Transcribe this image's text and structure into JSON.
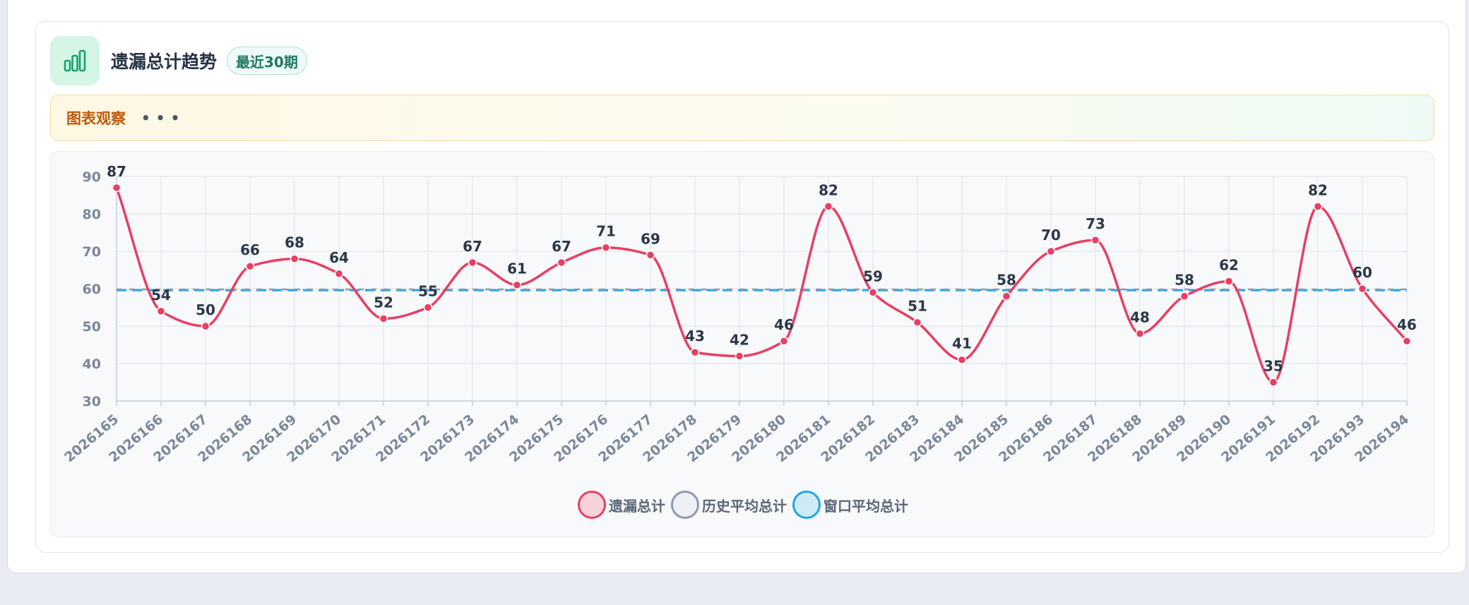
{
  "header": {
    "title": "遗漏总计趋势",
    "badge": "最近30期",
    "icon": "bar-chart-icon"
  },
  "insight": {
    "label": "图表观察",
    "dots": "•••"
  },
  "colors": {
    "accent_green": "#13a36f",
    "series_main": "#e83f63",
    "series_hist": "#8c9ab0",
    "series_window": "#22a6e0",
    "badge_text": "#1f7a63",
    "insight_label": "#c0580c"
  },
  "legend": [
    {
      "label": "遗漏总计",
      "border": "#e83f63",
      "fill": "#f7d2db"
    },
    {
      "label": "历史平均总计",
      "border": "#8c9ab0",
      "fill": "#edf0f4"
    },
    {
      "label": "窗口平均总计",
      "border": "#22a6e0",
      "fill": "#cfeaf7"
    }
  ],
  "chart_data": {
    "type": "line",
    "categories": [
      "2026165",
      "2026166",
      "2026167",
      "2026168",
      "2026169",
      "2026170",
      "2026171",
      "2026172",
      "2026173",
      "2026174",
      "2026175",
      "2026176",
      "2026177",
      "2026178",
      "2026179",
      "2026180",
      "2026181",
      "2026182",
      "2026183",
      "2026184",
      "2026185",
      "2026186",
      "2026187",
      "2026188",
      "2026189",
      "2026190",
      "2026191",
      "2026192",
      "2026193",
      "2026194"
    ],
    "series": [
      {
        "name": "遗漏总计",
        "color": "#e83f63",
        "smooth": true,
        "data_labels": true,
        "values": [
          87,
          54,
          50,
          66,
          68,
          64,
          52,
          55,
          67,
          61,
          67,
          71,
          69,
          43,
          42,
          46,
          82,
          59,
          51,
          41,
          58,
          70,
          73,
          48,
          58,
          62,
          35,
          82,
          60,
          46
        ]
      },
      {
        "name": "历史平均总计",
        "color": "#8c9ab0",
        "dashed": true,
        "constant": 59.8
      },
      {
        "name": "窗口平均总计",
        "color": "#22a6e0",
        "dashed": true,
        "constant": 59.6
      }
    ],
    "ylim": [
      30,
      90
    ],
    "yticks": [
      30,
      40,
      50,
      60,
      70,
      80,
      90
    ],
    "grid": true,
    "legend_position": "bottom-center"
  }
}
